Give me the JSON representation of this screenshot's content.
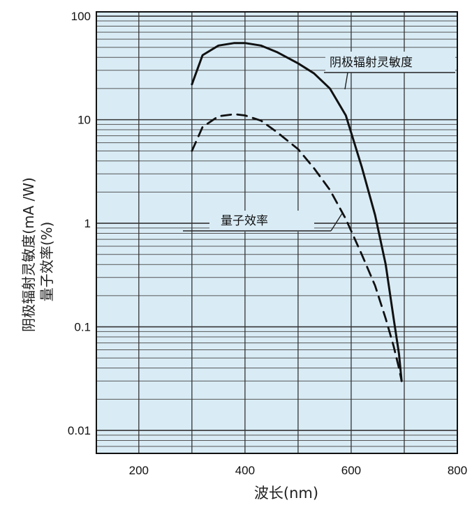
{
  "chart_data": {
    "type": "line",
    "xlabel": "波长(nm)",
    "ylabel_primary": "阴极辐射灵敏度(mA /W)",
    "ylabel_secondary": "量子效率(%)",
    "x_ticks": [
      "200",
      "400",
      "600",
      "800"
    ],
    "y_ticks": [
      "0.01",
      "0.1",
      "1",
      "10",
      "100"
    ],
    "xlim": [
      120,
      800
    ],
    "ylim": [
      0.006,
      110
    ],
    "y_scale": "log",
    "grid": true,
    "background_color": "#d9ecf6",
    "series": [
      {
        "name": "阴极辐射灵敏度",
        "style": "solid",
        "x": [
          300,
          320,
          350,
          380,
          400,
          430,
          460,
          500,
          530,
          560,
          590,
          620,
          645,
          665,
          680,
          690,
          695
        ],
        "y": [
          22,
          42,
          52,
          55,
          55,
          52,
          45,
          35,
          28,
          20,
          11,
          3.5,
          1.2,
          0.4,
          0.12,
          0.055,
          0.03
        ]
      },
      {
        "name": "量子效率",
        "style": "dashed",
        "x": [
          300,
          320,
          350,
          380,
          400,
          430,
          460,
          500,
          530,
          560,
          590,
          620,
          645,
          665,
          680,
          690,
          695
        ],
        "y": [
          5,
          8.5,
          10.8,
          11.3,
          11,
          9.8,
          7.6,
          5.2,
          3.4,
          2.1,
          1.1,
          0.5,
          0.25,
          0.12,
          0.065,
          0.04,
          0.03
        ]
      }
    ],
    "annotations": [
      {
        "text": "阴极辐射灵敏度"
      },
      {
        "text": "量子效率"
      }
    ]
  }
}
